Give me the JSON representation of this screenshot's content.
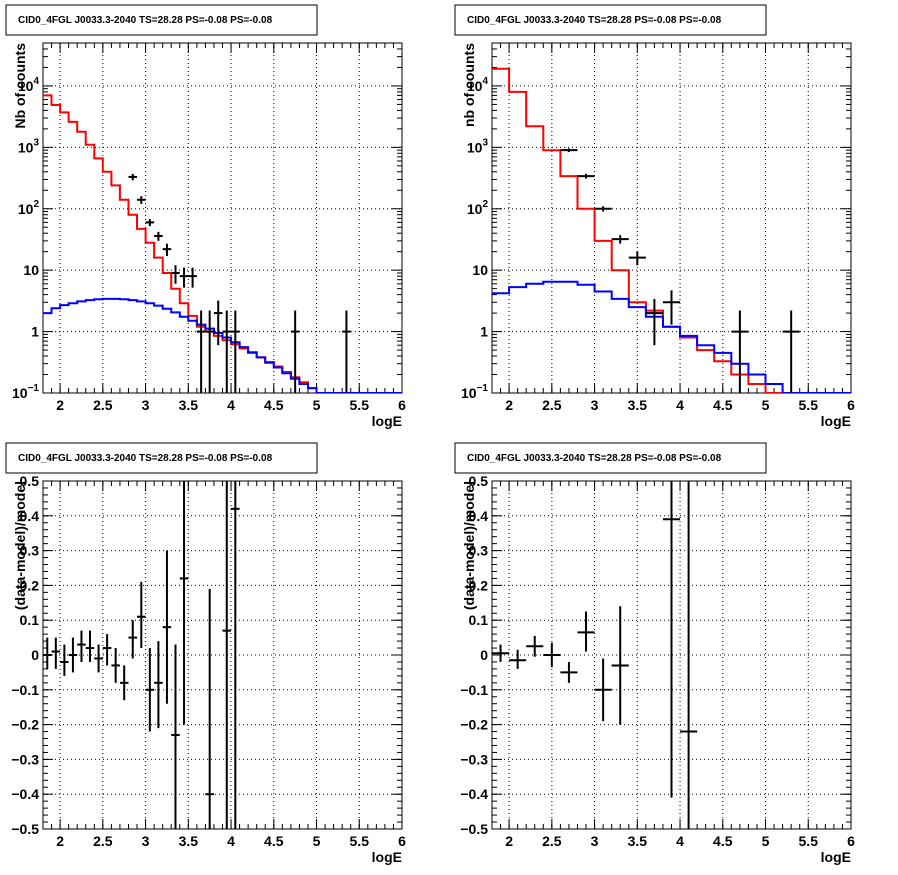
{
  "chart_data": [
    {
      "type": "histogram",
      "title": "CID0_4FGL J0033.3-2040 TS=28.28 PS=-0.08 PS=-0.08",
      "xlabel": "logE",
      "ylabel": "Nb of counts",
      "xlim": [
        1.8,
        6.0
      ],
      "ylim": [
        0.1,
        50000
      ],
      "yscale": "log",
      "x_ticks": [
        "2",
        "2.5",
        "3",
        "3.5",
        "4",
        "4.5",
        "5",
        "5.5",
        "6"
      ],
      "y_ticks": [
        {
          "value": 0.1,
          "label": "10",
          "exp": "−1"
        },
        {
          "value": 1,
          "label": "1",
          "exp": ""
        },
        {
          "value": 10,
          "label": "10",
          "exp": ""
        },
        {
          "value": 100,
          "label": "10",
          "exp": "2"
        },
        {
          "value": 1000,
          "label": "10",
          "exp": "3"
        },
        {
          "value": 10000,
          "label": "10",
          "exp": "4"
        }
      ],
      "grid": true,
      "series": [
        {
          "color": "#ff0000",
          "bin_width": 0.1,
          "edges_start": 1.8,
          "values": [
            7000,
            4900,
            3700,
            2600,
            1800,
            1100,
            660,
            400,
            240,
            140,
            80,
            47,
            28,
            16,
            9,
            5,
            2.9,
            1.8,
            1.2,
            1.0,
            0.85,
            0.72,
            0.62,
            0.53,
            0.45,
            0.38,
            0.32,
            0.27,
            0.22,
            0.18,
            0.15,
            0.12,
            0.1,
            0.1,
            0.1,
            0.1,
            0.1,
            0.1,
            0.1,
            0.1,
            0.1,
            0.1
          ]
        },
        {
          "color": "#0000ff",
          "bin_width": 0.1,
          "edges_start": 1.8,
          "values": [
            2.0,
            2.4,
            2.7,
            2.9,
            3.1,
            3.25,
            3.35,
            3.4,
            3.4,
            3.35,
            3.25,
            3.1,
            2.9,
            2.65,
            2.35,
            2.05,
            1.75,
            1.5,
            1.3,
            1.12,
            0.95,
            0.8,
            0.67,
            0.56,
            0.46,
            0.38,
            0.31,
            0.26,
            0.21,
            0.17,
            0.14,
            0.12,
            0.1,
            0.1,
            0.1,
            0.1,
            0.1,
            0.1,
            0.1,
            0.1,
            0.1,
            0.1
          ]
        }
      ],
      "points": [
        {
          "x": 2.85,
          "y": 330,
          "ylo": 290,
          "yhi": 370
        },
        {
          "x": 2.95,
          "y": 140,
          "ylo": 120,
          "yhi": 160
        },
        {
          "x": 3.05,
          "y": 60,
          "ylo": 52,
          "yhi": 68
        },
        {
          "x": 3.15,
          "y": 36,
          "ylo": 30,
          "yhi": 42
        },
        {
          "x": 3.25,
          "y": 22,
          "ylo": 17,
          "yhi": 27
        },
        {
          "x": 3.35,
          "y": 9,
          "ylo": 6,
          "yhi": 12
        },
        {
          "x": 3.45,
          "y": 8,
          "ylo": 5.2,
          "yhi": 11
        },
        {
          "x": 3.55,
          "y": 8,
          "ylo": 5.2,
          "yhi": 11
        },
        {
          "x": 3.65,
          "y": 1,
          "ylo": 0.1,
          "yhi": 2.2
        },
        {
          "x": 3.75,
          "y": 1,
          "ylo": 0.1,
          "yhi": 2.2
        },
        {
          "x": 3.85,
          "y": 2,
          "ylo": 0.6,
          "yhi": 3.2
        },
        {
          "x": 3.95,
          "y": 1,
          "ylo": 0.1,
          "yhi": 2.2
        },
        {
          "x": 4.05,
          "y": 1,
          "ylo": 0.1,
          "yhi": 2.2
        },
        {
          "x": 4.75,
          "y": 1,
          "ylo": 0.1,
          "yhi": 2.2
        },
        {
          "x": 5.35,
          "y": 1,
          "ylo": 0.1,
          "yhi": 2.2
        }
      ]
    },
    {
      "type": "histogram",
      "title": "CID0_4FGL J0033.3-2040 TS=28.28 PS=-0.08 PS=-0.08",
      "xlabel": "logE",
      "ylabel": "nb of counts",
      "xlim": [
        1.8,
        6.0
      ],
      "ylim": [
        0.1,
        50000
      ],
      "yscale": "log",
      "x_ticks": [
        "2",
        "2.5",
        "3",
        "3.5",
        "4",
        "4.5",
        "5",
        "5.5",
        "6"
      ],
      "y_ticks": [
        {
          "value": 0.1,
          "label": "10",
          "exp": "−1"
        },
        {
          "value": 1,
          "label": "1",
          "exp": ""
        },
        {
          "value": 10,
          "label": "10",
          "exp": ""
        },
        {
          "value": 100,
          "label": "10",
          "exp": "2"
        },
        {
          "value": 1000,
          "label": "10",
          "exp": "3"
        },
        {
          "value": 10000,
          "label": "10",
          "exp": "4"
        }
      ],
      "grid": true,
      "series": [
        {
          "color": "#ff0000",
          "bin_width": 0.2,
          "edges_start": 1.8,
          "values": [
            19000,
            8000,
            2200,
            900,
            340,
            100,
            30,
            10,
            3,
            2.2,
            1.2,
            0.8,
            0.5,
            0.33,
            0.2,
            0.14,
            0.1,
            0.1,
            0.1,
            0.1,
            0.1
          ]
        },
        {
          "color": "#0000ff",
          "bin_width": 0.2,
          "edges_start": 1.8,
          "values": [
            4.2,
            5.3,
            6.0,
            6.5,
            6.5,
            5.8,
            4.5,
            3.4,
            2.5,
            1.75,
            1.2,
            0.85,
            0.6,
            0.45,
            0.3,
            0.2,
            0.14,
            0.1,
            0.1,
            0.1,
            0.1
          ]
        }
      ],
      "points": [
        {
          "x": 2.7,
          "y": 900,
          "ylo": 840,
          "yhi": 960
        },
        {
          "x": 2.9,
          "y": 340,
          "ylo": 310,
          "yhi": 370
        },
        {
          "x": 3.1,
          "y": 100,
          "ylo": 90,
          "yhi": 110
        },
        {
          "x": 3.3,
          "y": 32,
          "ylo": 27,
          "yhi": 37
        },
        {
          "x": 3.5,
          "y": 16,
          "ylo": 12,
          "yhi": 20
        },
        {
          "x": 3.7,
          "y": 2,
          "ylo": 0.6,
          "yhi": 3.4
        },
        {
          "x": 3.9,
          "y": 3,
          "ylo": 1.3,
          "yhi": 4.7
        },
        {
          "x": 4.7,
          "y": 1,
          "ylo": 0.1,
          "yhi": 2.2
        },
        {
          "x": 5.3,
          "y": 1,
          "ylo": 0.1,
          "yhi": 2.2
        }
      ]
    },
    {
      "type": "scatter",
      "title": "CID0_4FGL J0033.3-2040 TS=28.28 PS=-0.08 PS=-0.08",
      "xlabel": "logE",
      "ylabel": "(data-model)/model",
      "xlim": [
        1.8,
        6.0
      ],
      "ylim": [
        -0.5,
        0.5
      ],
      "yscale": "linear",
      "x_ticks": [
        "2",
        "2.5",
        "3",
        "3.5",
        "4",
        "4.5",
        "5",
        "5.5",
        "6"
      ],
      "y_ticks": [
        {
          "value": -0.5,
          "label": "−0.5"
        },
        {
          "value": -0.4,
          "label": "−0.4"
        },
        {
          "value": -0.3,
          "label": "−0.3"
        },
        {
          "value": -0.2,
          "label": "−0.2"
        },
        {
          "value": -0.1,
          "label": "−0.1"
        },
        {
          "value": 0,
          "label": "0"
        },
        {
          "value": 0.1,
          "label": "0.1"
        },
        {
          "value": 0.2,
          "label": "0.2"
        },
        {
          "value": 0.3,
          "label": "0.3"
        },
        {
          "value": 0.4,
          "label": "0.4"
        },
        {
          "value": 0.5,
          "label": "0.5"
        }
      ],
      "grid": true,
      "points": [
        {
          "x": 1.85,
          "y": 0.0,
          "ylo": -0.04,
          "yhi": 0.05
        },
        {
          "x": 1.95,
          "y": 0.01,
          "ylo": -0.04,
          "yhi": 0.05
        },
        {
          "x": 2.05,
          "y": -0.02,
          "ylo": -0.06,
          "yhi": 0.03
        },
        {
          "x": 2.15,
          "y": 0.0,
          "ylo": -0.05,
          "yhi": 0.05
        },
        {
          "x": 2.25,
          "y": 0.03,
          "ylo": -0.02,
          "yhi": 0.07
        },
        {
          "x": 2.35,
          "y": 0.02,
          "ylo": -0.02,
          "yhi": 0.07
        },
        {
          "x": 2.45,
          "y": -0.01,
          "ylo": -0.05,
          "yhi": 0.03
        },
        {
          "x": 2.55,
          "y": 0.02,
          "ylo": -0.03,
          "yhi": 0.06
        },
        {
          "x": 2.65,
          "y": -0.03,
          "ylo": -0.08,
          "yhi": 0.02
        },
        {
          "x": 2.75,
          "y": -0.08,
          "ylo": -0.13,
          "yhi": -0.03
        },
        {
          "x": 2.85,
          "y": 0.05,
          "ylo": -0.01,
          "yhi": 0.1
        },
        {
          "x": 2.95,
          "y": 0.11,
          "ylo": 0.02,
          "yhi": 0.21
        },
        {
          "x": 3.05,
          "y": -0.1,
          "ylo": -0.22,
          "yhi": 0.02
        },
        {
          "x": 3.15,
          "y": -0.08,
          "ylo": -0.21,
          "yhi": 0.04
        },
        {
          "x": 3.25,
          "y": 0.08,
          "ylo": -0.14,
          "yhi": 0.3
        },
        {
          "x": 3.35,
          "y": -0.23,
          "ylo": -0.5,
          "yhi": 0.03
        },
        {
          "x": 3.45,
          "y": 0.22,
          "ylo": -0.2,
          "yhi": 0.5
        },
        {
          "x": 3.75,
          "y": -0.4,
          "ylo": -0.5,
          "yhi": 0.19
        },
        {
          "x": 3.95,
          "y": 0.07,
          "ylo": -0.5,
          "yhi": 0.5
        },
        {
          "x": 4.05,
          "y": 0.42,
          "ylo": -0.5,
          "yhi": 0.5
        }
      ]
    },
    {
      "type": "scatter",
      "title": "CID0_4FGL J0033.3-2040 TS=28.28 PS=-0.08 PS=-0.08",
      "xlabel": "logE",
      "ylabel": "(data-model)/model",
      "xlim": [
        1.8,
        6.0
      ],
      "ylim": [
        -0.5,
        0.5
      ],
      "yscale": "linear",
      "x_ticks": [
        "2",
        "2.5",
        "3",
        "3.5",
        "4",
        "4.5",
        "5",
        "5.5",
        "6"
      ],
      "y_ticks": [
        {
          "value": -0.5,
          "label": "−0.5"
        },
        {
          "value": -0.4,
          "label": "−0.4"
        },
        {
          "value": -0.3,
          "label": "−0.3"
        },
        {
          "value": -0.2,
          "label": "−0.2"
        },
        {
          "value": -0.1,
          "label": "−0.1"
        },
        {
          "value": 0,
          "label": "0"
        },
        {
          "value": 0.1,
          "label": "0.1"
        },
        {
          "value": 0.2,
          "label": "0.2"
        },
        {
          "value": 0.3,
          "label": "0.3"
        },
        {
          "value": 0.4,
          "label": "0.4"
        },
        {
          "value": 0.5,
          "label": "0.5"
        }
      ],
      "grid": true,
      "points": [
        {
          "x": 1.9,
          "y": 0.005,
          "ylo": -0.02,
          "yhi": 0.03
        },
        {
          "x": 2.1,
          "y": -0.015,
          "ylo": -0.04,
          "yhi": 0.015
        },
        {
          "x": 2.3,
          "y": 0.025,
          "ylo": -0.005,
          "yhi": 0.055
        },
        {
          "x": 2.5,
          "y": 0.0,
          "ylo": -0.035,
          "yhi": 0.035
        },
        {
          "x": 2.7,
          "y": -0.05,
          "ylo": -0.08,
          "yhi": -0.02
        },
        {
          "x": 2.9,
          "y": 0.065,
          "ylo": 0.01,
          "yhi": 0.125
        },
        {
          "x": 3.1,
          "y": -0.1,
          "ylo": -0.19,
          "yhi": -0.01
        },
        {
          "x": 3.3,
          "y": -0.03,
          "ylo": -0.2,
          "yhi": 0.14
        },
        {
          "x": 3.9,
          "y": 0.39,
          "ylo": -0.41,
          "yhi": 0.5
        },
        {
          "x": 4.1,
          "y": -0.22,
          "ylo": -0.5,
          "yhi": 0.5
        }
      ]
    }
  ]
}
